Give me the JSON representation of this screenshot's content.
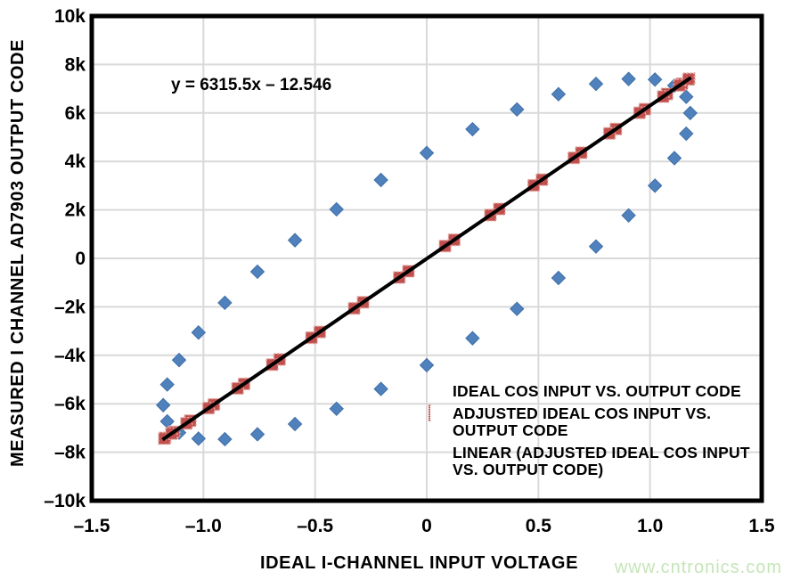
{
  "watermark": {
    "text": "www.cntronics.com",
    "color": "#c5e5b8"
  },
  "chart_data": {
    "type": "scatter",
    "title": "",
    "xlabel": "IDEAL I-CHANNEL INPUT VOLTAGE",
    "ylabel": "MEASURED I CHANNEL AD7903 OUTPUT CODE",
    "xlim": [
      -1.5,
      1.5
    ],
    "ylim": [
      -10000,
      10000
    ],
    "grid": true,
    "grid_color": "#d9d9d9",
    "border_color": "#000000",
    "annotation": "y = 6315.5x – 12.546",
    "x_ticks": [
      {
        "v": -1.5,
        "label": "–1.5"
      },
      {
        "v": -1.0,
        "label": "–1.0"
      },
      {
        "v": -0.5,
        "label": "–0.5"
      },
      {
        "v": 0,
        "label": "0"
      },
      {
        "v": 0.5,
        "label": "0.5"
      },
      {
        "v": 1.0,
        "label": "1.0"
      },
      {
        "v": 1.5,
        "label": "1.5"
      }
    ],
    "y_ticks": [
      {
        "v": 10000,
        "label": "10k"
      },
      {
        "v": 8000,
        "label": "8k"
      },
      {
        "v": 6000,
        "label": "6k"
      },
      {
        "v": 4000,
        "label": "4k"
      },
      {
        "v": 2000,
        "label": "2k"
      },
      {
        "v": 0,
        "label": "0"
      },
      {
        "v": -2000,
        "label": "–2k"
      },
      {
        "v": -4000,
        "label": "–4k"
      },
      {
        "v": -6000,
        "label": "–6k"
      },
      {
        "v": -8000,
        "label": "–8k"
      },
      {
        "v": -10000,
        "label": "–10k"
      }
    ],
    "series": [
      {
        "name": "IDEAL COS INPUT VS. OUTPUT CODE",
        "type": "scatter",
        "marker": "diamond",
        "color": "#4f81bd",
        "points": [
          [
            1.18,
            5997
          ],
          [
            1.162,
            6666
          ],
          [
            1.109,
            7131
          ],
          [
            1.022,
            7379
          ],
          [
            0.904,
            7402
          ],
          [
            0.758,
            7199
          ],
          [
            0.59,
            6776
          ],
          [
            0.404,
            6146
          ],
          [
            0.205,
            5329
          ],
          [
            0.0,
            4349
          ],
          [
            -0.205,
            3236
          ],
          [
            -0.404,
            2024
          ],
          [
            -0.59,
            749
          ],
          [
            -0.758,
            -550
          ],
          [
            -0.904,
            -1832
          ],
          [
            -1.022,
            -3060
          ],
          [
            -1.109,
            -4196
          ],
          [
            -1.162,
            -5205
          ],
          [
            -1.18,
            -6057
          ],
          [
            -1.162,
            -6726
          ],
          [
            -1.109,
            -7191
          ],
          [
            -1.022,
            -7439
          ],
          [
            -0.904,
            -7462
          ],
          [
            -0.758,
            -7259
          ],
          [
            -0.59,
            -6836
          ],
          [
            -0.404,
            -6206
          ],
          [
            -0.205,
            -5389
          ],
          [
            0.0,
            -4409
          ],
          [
            0.205,
            -3296
          ],
          [
            0.404,
            -2084
          ],
          [
            0.59,
            -809
          ],
          [
            0.758,
            490
          ],
          [
            0.904,
            1772
          ],
          [
            1.022,
            3000
          ],
          [
            1.109,
            4136
          ],
          [
            1.162,
            5145
          ]
        ]
      },
      {
        "name": "ADJUSTED IDEAL COS INPUT VS. OUTPUT CODE",
        "type": "scatter",
        "marker": "square",
        "color": "#c0504d",
        "points": [
          [
            1.175,
            7408
          ],
          [
            1.143,
            7206
          ],
          [
            1.076,
            6784
          ],
          [
            0.977,
            6155
          ],
          [
            0.847,
            5339
          ],
          [
            0.692,
            4360
          ],
          [
            0.516,
            3248
          ],
          [
            0.325,
            2038
          ],
          [
            0.123,
            765
          ],
          [
            -0.082,
            -532
          ],
          [
            -0.285,
            -1812
          ],
          [
            -0.479,
            -3038
          ],
          [
            -0.659,
            -4173
          ],
          [
            -0.818,
            -5181
          ],
          [
            -0.953,
            -6031
          ],
          [
            -1.059,
            -6699
          ],
          [
            -1.132,
            -7164
          ],
          [
            -1.172,
            -7411
          ],
          [
            -1.175,
            -7433
          ],
          [
            -1.143,
            -7231
          ],
          [
            -1.076,
            -6809
          ],
          [
            -0.977,
            -6180
          ],
          [
            -0.847,
            -5364
          ],
          [
            -0.692,
            -4385
          ],
          [
            -0.516,
            -3274
          ],
          [
            -0.325,
            -2063
          ],
          [
            -0.123,
            -790
          ],
          [
            0.082,
            507
          ],
          [
            0.285,
            1787
          ],
          [
            0.479,
            3013
          ],
          [
            0.659,
            4147
          ],
          [
            0.818,
            5156
          ],
          [
            0.953,
            6006
          ],
          [
            1.059,
            6674
          ],
          [
            1.132,
            7139
          ],
          [
            1.172,
            7386
          ]
        ]
      },
      {
        "name": "LINEAR (ADJUSTED IDEAL COS INPUT VS. OUTPUT CODE)",
        "type": "line",
        "color": "#000000",
        "equation": "y = 6315.5x – 12.546",
        "points": [
          [
            -1.183,
            -7483
          ],
          [
            1.183,
            7459
          ]
        ]
      }
    ],
    "legend": {
      "position": "inside bottom-right",
      "items": [
        {
          "marker": "diamond",
          "lines": [
            "IDEAL COS INPUT VS. OUTPUT CODE"
          ]
        },
        {
          "marker": "square",
          "lines": [
            "ADJUSTED IDEAL COS INPUT VS.",
            "OUTPUT CODE"
          ]
        },
        {
          "marker": "line",
          "lines": [
            "LINEAR (ADJUSTED IDEAL COS INPUT",
            "VS. OUTPUT CODE)"
          ]
        }
      ]
    }
  }
}
